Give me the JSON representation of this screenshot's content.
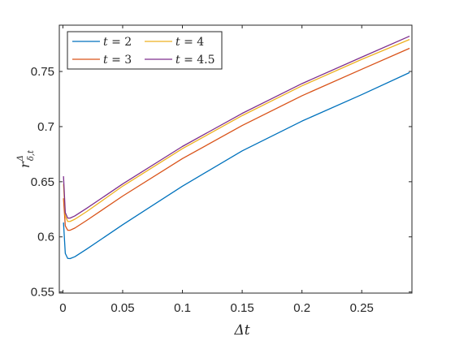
{
  "chart_data": {
    "type": "line",
    "xlabel": "Δt",
    "ylabel_main": "r",
    "ylabel_sup": "Δ",
    "ylabel_sub": "δ,t",
    "xlim": [
      -0.003,
      0.292
    ],
    "ylim": [
      0.549,
      0.792
    ],
    "grid": false,
    "legend_placement": "top-left",
    "legend_columns": 2,
    "x_ticks": [
      0,
      0.05,
      0.1,
      0.15,
      0.2,
      0.25
    ],
    "x_tick_labels": [
      "0",
      "0.05",
      "0.1",
      "0.15",
      "0.2",
      "0.25"
    ],
    "y_ticks": [
      0.55,
      0.6,
      0.65,
      0.7,
      0.75
    ],
    "y_tick_labels": [
      "0.55",
      "0.6",
      "0.65",
      "0.7",
      "0.75"
    ],
    "x": [
      0.0005,
      0.002,
      0.004,
      0.006,
      0.01,
      0.02,
      0.05,
      0.1,
      0.15,
      0.2,
      0.25,
      0.29
    ],
    "series": [
      {
        "name": "t = 2",
        "legend_var": "t",
        "legend_value": "2",
        "color": "#0072BD",
        "values": [
          0.613,
          0.585,
          0.5805,
          0.5803,
          0.582,
          0.589,
          0.611,
          0.646,
          0.678,
          0.705,
          0.729,
          0.749
        ]
      },
      {
        "name": "t = 3",
        "legend_var": "t",
        "legend_value": "3",
        "color": "#D95319",
        "values": [
          0.635,
          0.61,
          0.606,
          0.606,
          0.608,
          0.615,
          0.637,
          0.671,
          0.701,
          0.728,
          0.752,
          0.771
        ]
      },
      {
        "name": "t = 4",
        "legend_var": "t",
        "legend_value": "4",
        "color": "#EDB120",
        "values": [
          0.648,
          0.619,
          0.614,
          0.614,
          0.616,
          0.623,
          0.646,
          0.68,
          0.71,
          0.737,
          0.761,
          0.779
        ]
      },
      {
        "name": "t = 4.5",
        "legend_var": "t",
        "legend_value": "4.5",
        "color": "#7E2F8E",
        "values": [
          0.655,
          0.622,
          0.617,
          0.617,
          0.619,
          0.626,
          0.648,
          0.682,
          0.712,
          0.739,
          0.763,
          0.782
        ]
      }
    ]
  }
}
